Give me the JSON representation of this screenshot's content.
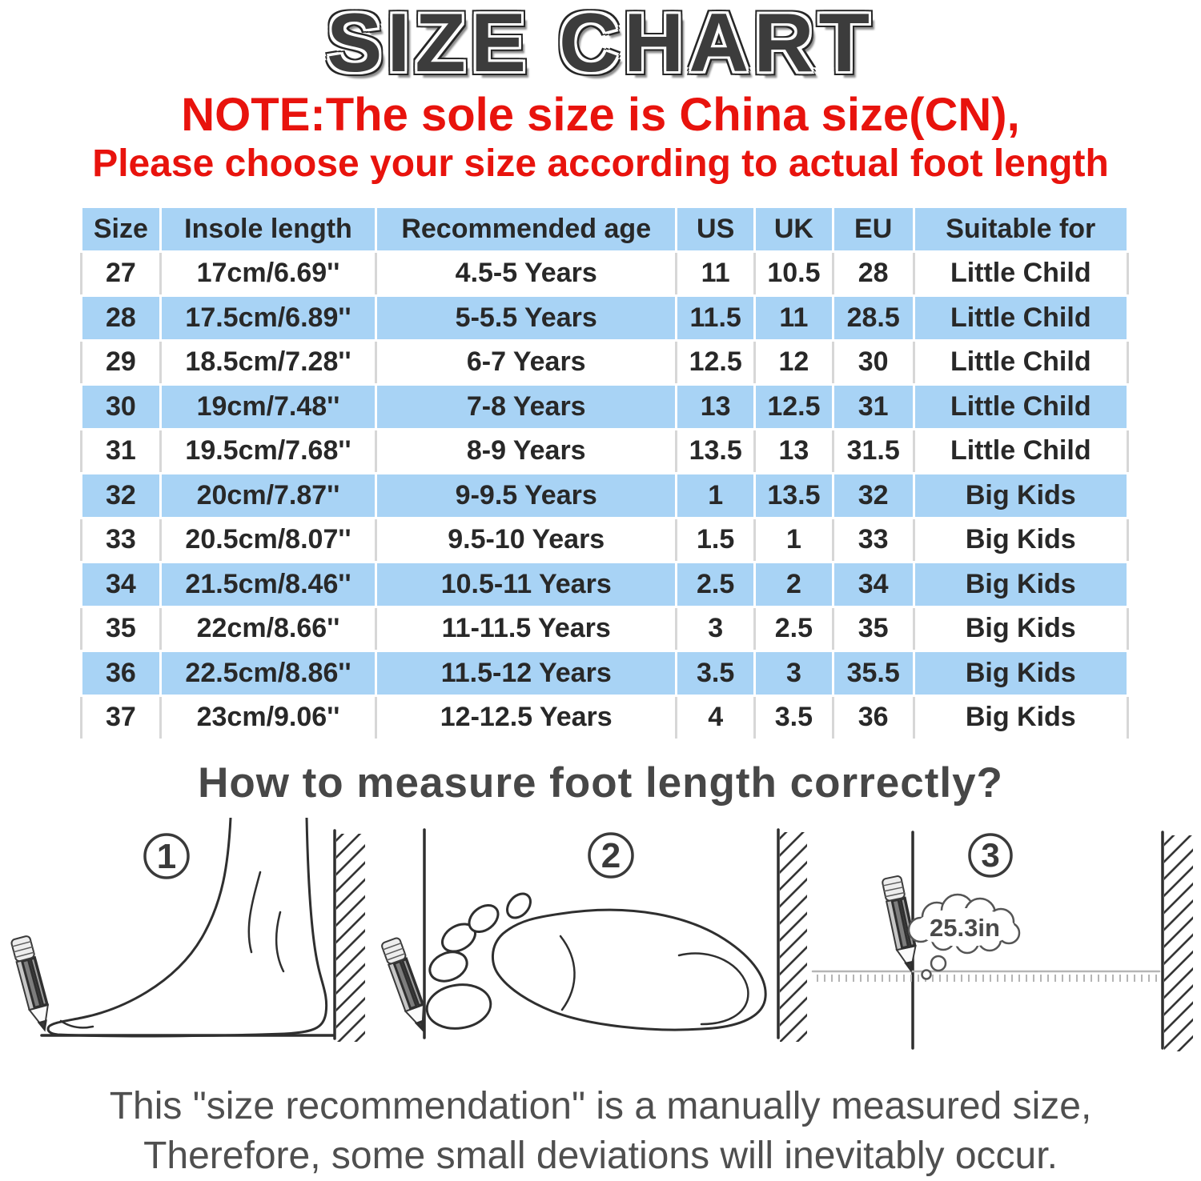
{
  "title": "SIZE CHART",
  "note": {
    "line1": "NOTE:The sole size is China size(CN),",
    "line2": "Please choose your size according to actual foot length"
  },
  "colors": {
    "note_red": "#e8130d",
    "table_blue": "#a8d3f5"
  },
  "table": {
    "headers": [
      "Size",
      "Insole length",
      "Recommended age",
      "US",
      "UK",
      "EU",
      "Suitable for"
    ],
    "rows": [
      [
        "27",
        "17cm/6.69''",
        "4.5-5 Years",
        "11",
        "10.5",
        "28",
        "Little Child"
      ],
      [
        "28",
        "17.5cm/6.89''",
        "5-5.5 Years",
        "11.5",
        "11",
        "28.5",
        "Little Child"
      ],
      [
        "29",
        "18.5cm/7.28''",
        "6-7 Years",
        "12.5",
        "12",
        "30",
        "Little Child"
      ],
      [
        "30",
        "19cm/7.48''",
        "7-8 Years",
        "13",
        "12.5",
        "31",
        "Little Child"
      ],
      [
        "31",
        "19.5cm/7.68''",
        "8-9 Years",
        "13.5",
        "13",
        "31.5",
        "Little Child"
      ],
      [
        "32",
        "20cm/7.87''",
        "9-9.5 Years",
        "1",
        "13.5",
        "32",
        "Big Kids"
      ],
      [
        "33",
        "20.5cm/8.07''",
        "9.5-10 Years",
        "1.5",
        "1",
        "33",
        "Big Kids"
      ],
      [
        "34",
        "21.5cm/8.46''",
        "10.5-11 Years",
        "2.5",
        "2",
        "34",
        "Big Kids"
      ],
      [
        "35",
        "22cm/8.66''",
        "11-11.5 Years",
        "3",
        "2.5",
        "35",
        "Big Kids"
      ],
      [
        "36",
        "22.5cm/8.86''",
        "11.5-12 Years",
        "3.5",
        "3",
        "35.5",
        "Big Kids"
      ],
      [
        "37",
        "23cm/9.06''",
        "12-12.5 Years",
        "4",
        "3.5",
        "36",
        "Big Kids"
      ]
    ]
  },
  "measure_heading": "How to measure foot length correctly?",
  "diagrams": {
    "steps": [
      "1",
      "2",
      "3"
    ],
    "bubble_text": "25.3in"
  },
  "footer": {
    "line1": "This \"size recommendation\" is a manually measured size,",
    "line2": "Therefore, some small deviations will inevitably occur."
  }
}
